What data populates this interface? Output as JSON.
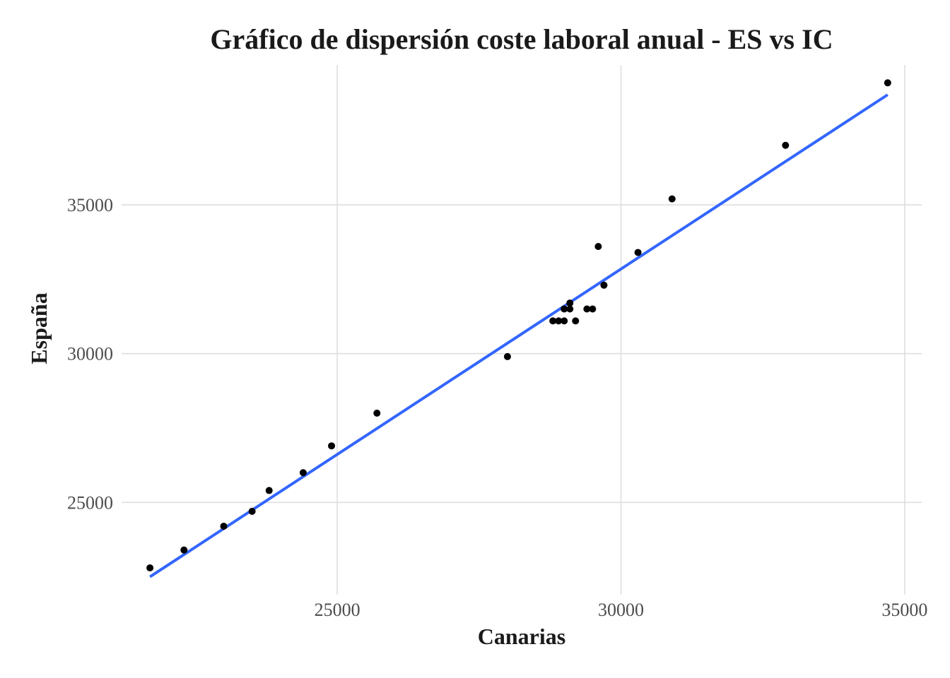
{
  "chart_data": {
    "type": "scatter",
    "title": "Gráfico de dispersión coste laboral anual - ES vs IC",
    "xlabel": "Canarias",
    "ylabel": "España",
    "xlim": [
      21200,
      35300
    ],
    "ylim": [
      21900,
      39700
    ],
    "xticks": [
      25000,
      30000,
      35000
    ],
    "yticks": [
      25000,
      30000,
      35000
    ],
    "grid": true,
    "legend": "none",
    "colors": {
      "points": "#000000",
      "fit": "#3366ff",
      "grid": "#dedede"
    },
    "points": [
      {
        "x": 21700,
        "y": 22800
      },
      {
        "x": 22300,
        "y": 23400
      },
      {
        "x": 23000,
        "y": 24200
      },
      {
        "x": 23500,
        "y": 24700
      },
      {
        "x": 23800,
        "y": 25400
      },
      {
        "x": 24400,
        "y": 26000
      },
      {
        "x": 24900,
        "y": 26900
      },
      {
        "x": 25700,
        "y": 28000
      },
      {
        "x": 28000,
        "y": 29900
      },
      {
        "x": 28800,
        "y": 31100
      },
      {
        "x": 28900,
        "y": 31100
      },
      {
        "x": 29000,
        "y": 31100
      },
      {
        "x": 29000,
        "y": 31500
      },
      {
        "x": 29100,
        "y": 31500
      },
      {
        "x": 29100,
        "y": 31700
      },
      {
        "x": 29200,
        "y": 31100
      },
      {
        "x": 29400,
        "y": 31500
      },
      {
        "x": 29500,
        "y": 31500
      },
      {
        "x": 29600,
        "y": 33600
      },
      {
        "x": 29700,
        "y": 32300
      },
      {
        "x": 30300,
        "y": 33400
      },
      {
        "x": 30900,
        "y": 35200
      },
      {
        "x": 32900,
        "y": 37000
      },
      {
        "x": 34700,
        "y": 39100
      }
    ],
    "fit_line": {
      "x": [
        21700,
        34700
      ],
      "y": [
        22500,
        38700
      ]
    }
  }
}
